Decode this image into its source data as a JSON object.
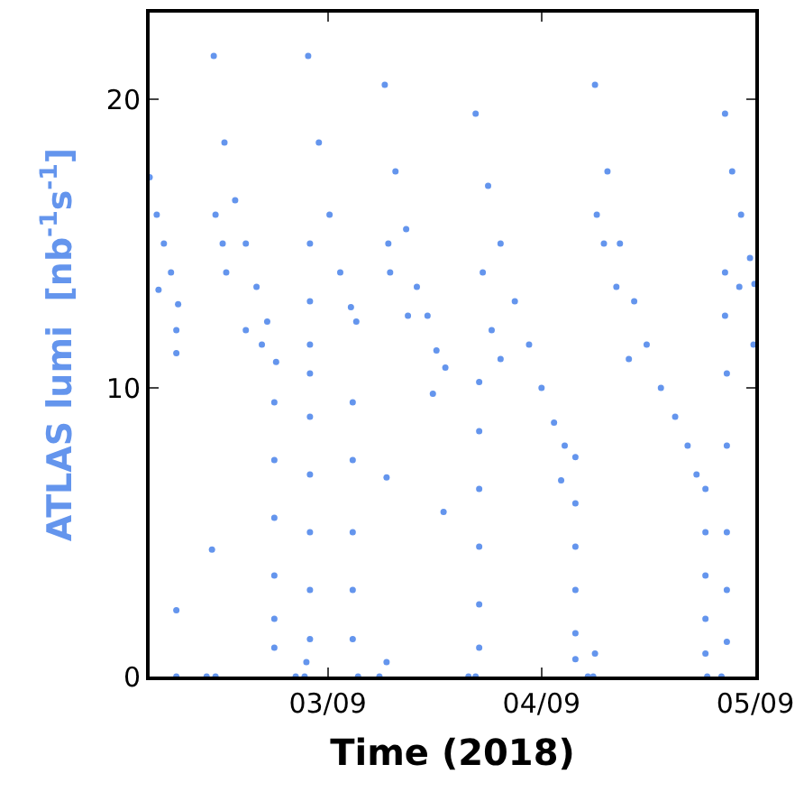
{
  "chart_data": {
    "type": "scatter",
    "xlabel": "Time (2018)",
    "ylabel": "ATLAS lumi  [nb$^{-1}$s$^{-1}$]",
    "xlim": [
      "2018-09-02T04:00",
      "2018-09-05T00:00"
    ],
    "xticks": [
      {
        "value": "2018-09-03",
        "label": "03/09"
      },
      {
        "value": "2018-09-04",
        "label": "04/09"
      },
      {
        "value": "2018-09-05",
        "label": "05/09"
      }
    ],
    "ylim": [
      0,
      23
    ],
    "yticks": [
      0,
      10,
      20
    ],
    "marker": "circle",
    "series": [
      {
        "color": "#6495ed",
        "x": [
          "2018-09-02T04:00",
          "2018-09-02T04:48",
          "2018-09-02T05:36",
          "2018-09-02T06:24",
          "2018-09-02T07:12",
          "2018-09-02T05:00",
          "2018-09-02T07:00",
          "2018-09-02T07:00",
          "2018-09-02T07:00",
          "2018-09-02T07:00",
          "2018-09-02T10:24",
          "2018-09-02T11:00",
          "2018-09-02T11:24",
          "2018-09-02T11:12",
          "2018-09-02T12:24",
          "2018-09-02T13:36",
          "2018-09-02T14:48",
          "2018-09-02T16:00",
          "2018-09-02T17:12",
          "2018-09-02T18:12",
          "2018-09-02T11:24",
          "2018-09-02T12:12",
          "2018-09-02T12:36",
          "2018-09-02T14:48",
          "2018-09-02T16:36",
          "2018-09-02T18:00",
          "2018-09-02T18:00",
          "2018-09-02T18:00",
          "2018-09-02T18:00",
          "2018-09-02T18:00",
          "2018-09-02T18:00",
          "2018-09-02T20:24",
          "2018-09-02T21:24",
          "2018-09-02T21:36",
          "2018-09-02T22:00",
          "2018-09-02T22:00",
          "2018-09-02T22:00",
          "2018-09-02T22:00",
          "2018-09-02T22:00",
          "2018-09-02T22:00",
          "2018-09-02T21:48",
          "2018-09-02T23:00",
          "2018-09-03T00:12",
          "2018-09-03T01:24",
          "2018-09-03T02:36",
          "2018-09-03T03:12",
          "2018-09-02T22:00",
          "2018-09-02T22:00",
          "2018-09-02T22:00",
          "2018-09-03T02:48",
          "2018-09-03T02:48",
          "2018-09-03T02:48",
          "2018-09-03T02:48",
          "2018-09-03T02:48",
          "2018-09-03T03:24",
          "2018-09-03T05:48",
          "2018-09-03T06:36",
          "2018-09-03T06:36",
          "2018-09-03T06:24",
          "2018-09-03T07:36",
          "2018-09-03T08:48",
          "2018-09-03T10:00",
          "2018-09-03T11:12",
          "2018-09-03T12:12",
          "2018-09-03T13:12",
          "2018-09-03T06:48",
          "2018-09-03T07:00",
          "2018-09-03T09:00",
          "2018-09-03T11:48",
          "2018-09-03T13:00",
          "2018-09-03T15:48",
          "2018-09-03T16:36",
          "2018-09-03T17:00",
          "2018-09-03T17:00",
          "2018-09-03T17:00",
          "2018-09-03T17:00",
          "2018-09-03T17:00",
          "2018-09-03T17:00",
          "2018-09-03T16:36",
          "2018-09-03T18:00",
          "2018-09-03T19:24",
          "2018-09-03T21:00",
          "2018-09-03T22:36",
          "2018-09-04T00:00",
          "2018-09-04T01:24",
          "2018-09-04T02:36",
          "2018-09-04T03:48",
          "2018-09-03T17:24",
          "2018-09-03T18:24",
          "2018-09-03T19:24",
          "2018-09-04T02:12",
          "2018-09-04T03:48",
          "2018-09-04T03:48",
          "2018-09-04T03:48",
          "2018-09-04T03:48",
          "2018-09-04T03:48",
          "2018-09-04T06:00",
          "2018-09-04T05:12",
          "2018-09-04T05:48",
          "2018-09-04T06:00",
          "2018-09-04T07:24",
          "2018-09-04T08:48",
          "2018-09-04T10:24",
          "2018-09-04T11:48",
          "2018-09-04T13:24",
          "2018-09-04T15:00",
          "2018-09-04T16:24",
          "2018-09-04T17:24",
          "2018-09-04T18:24",
          "2018-09-04T06:12",
          "2018-09-04T07:00",
          "2018-09-04T08:24",
          "2018-09-04T09:48",
          "2018-09-04T18:24",
          "2018-09-04T18:24",
          "2018-09-04T18:24",
          "2018-09-04T18:24",
          "2018-09-04T18:36",
          "2018-09-04T20:12",
          "2018-09-04T20:36",
          "2018-09-04T21:24",
          "2018-09-04T22:24",
          "2018-09-04T23:24",
          "2018-09-04T23:54",
          "2018-09-04T20:36",
          "2018-09-04T20:36",
          "2018-09-04T22:12",
          "2018-09-04T23:48",
          "2018-09-04T20:48",
          "2018-09-04T20:48",
          "2018-09-04T20:48",
          "2018-09-04T20:48",
          "2018-09-04T20:48"
        ],
        "values": [
          17.3,
          16.0,
          15.0,
          14.0,
          12.9,
          13.4,
          12.0,
          11.2,
          2.3,
          0,
          0,
          4.4,
          0,
          21.5,
          18.5,
          16.5,
          15.0,
          13.5,
          12.3,
          10.9,
          16.0,
          15.0,
          14.0,
          12.0,
          11.5,
          9.5,
          7.5,
          5.5,
          3.5,
          2.0,
          1.0,
          0,
          0,
          0.5,
          1.3,
          3.0,
          5.0,
          7.0,
          9.0,
          10.5,
          21.5,
          18.5,
          16.0,
          14.0,
          12.8,
          12.3,
          15,
          13,
          11.5,
          1.3,
          3.0,
          5.0,
          7.5,
          9.5,
          0,
          0,
          6.9,
          0.5,
          20.5,
          17.5,
          15.5,
          13.5,
          12.5,
          11.3,
          10.7,
          15,
          14,
          12.5,
          9.8,
          5.7,
          0,
          0,
          1.0,
          2.5,
          4.5,
          6.5,
          8.5,
          10.2,
          19.5,
          17.0,
          15.0,
          13.0,
          11.5,
          10.0,
          8.8,
          8.0,
          7.6,
          14,
          12,
          11,
          6.8,
          6.0,
          4.5,
          3.0,
          1.5,
          0.6,
          0.8,
          0,
          0,
          20.5,
          17.5,
          15.0,
          13.0,
          11.5,
          10.0,
          9.0,
          8.0,
          7.0,
          6.5,
          16,
          15,
          13.5,
          11,
          5.0,
          3.5,
          2.0,
          0.8,
          0,
          0,
          19.5,
          17.5,
          16.0,
          14.5,
          13.6,
          14,
          12.5,
          13.5,
          11.5,
          10.5,
          8.0,
          5.0,
          3.0,
          1.2
        ]
      }
    ]
  }
}
